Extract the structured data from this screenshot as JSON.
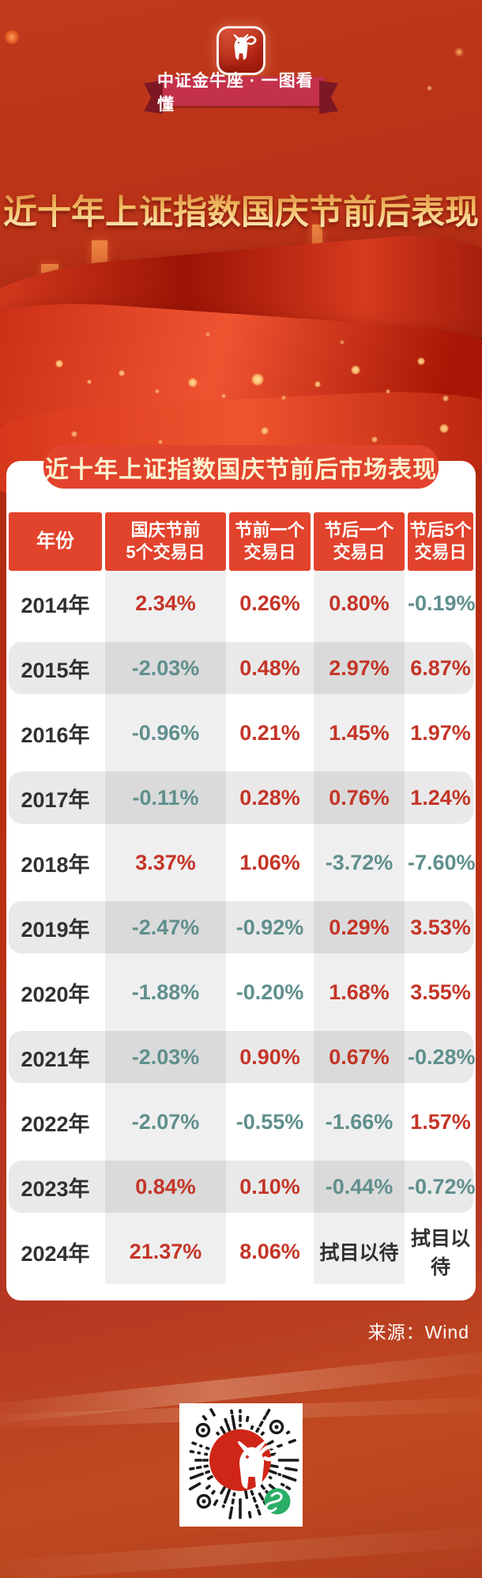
{
  "brand": {
    "app_icon": "bull-icon",
    "banner_label": "中证金牛座 · 一图看懂"
  },
  "page_title": "近十年上证指数国庆节前后表现",
  "card": {
    "header_lines": [
      [
        "年份"
      ],
      [
        "国庆节前",
        "5个交易日"
      ],
      [
        "节前一个",
        "交易日"
      ],
      [
        "节后一个",
        "交易日"
      ],
      [
        "节后5个",
        "交易日"
      ]
    ]
  },
  "chart_data": {
    "type": "table",
    "title": "近十年上证指数国庆节前后市场表现",
    "columns": [
      "年份",
      "国庆节前5个交易日",
      "节前一个交易日",
      "节后一个交易日",
      "节后5个交易日"
    ],
    "rows": [
      [
        "2014年",
        "2.34%",
        "0.26%",
        "0.80%",
        "-0.19%"
      ],
      [
        "2015年",
        "-2.03%",
        "0.48%",
        "2.97%",
        "6.87%"
      ],
      [
        "2016年",
        "-0.96%",
        "0.21%",
        "1.45%",
        "1.97%"
      ],
      [
        "2017年",
        "-0.11%",
        "0.28%",
        "0.76%",
        "1.24%"
      ],
      [
        "2018年",
        "3.37%",
        "1.06%",
        "-3.72%",
        "-7.60%"
      ],
      [
        "2019年",
        "-2.47%",
        "-0.92%",
        "0.29%",
        "3.53%"
      ],
      [
        "2020年",
        "-1.88%",
        "-0.20%",
        "1.68%",
        "3.55%"
      ],
      [
        "2021年",
        "-2.03%",
        "0.90%",
        "0.67%",
        "-0.28%"
      ],
      [
        "2022年",
        "-2.07%",
        "-0.55%",
        "-1.66%",
        "1.57%"
      ],
      [
        "2023年",
        "0.84%",
        "0.10%",
        "-0.44%",
        "-0.72%"
      ],
      [
        "2024年",
        "21.37%",
        "8.06%",
        "拭目以待",
        "拭目以待"
      ]
    ],
    "value_color_rule": "red = positive, teal = negative, dark = text",
    "source": "Wind"
  },
  "source_label": "来源：Wind",
  "qr": {
    "center_icon": "bull-icon",
    "corner_icon": "wechat-mini-program-icon",
    "style": "circular dotted mini-program code"
  },
  "colors": {
    "positive": "#c43527",
    "negative": "#5f8f8d",
    "header_red": "#e2432c",
    "pill_text": "#fcf3d0",
    "banner_red": "#c4314a",
    "title_gold_light": "#fdf0c4",
    "title_gold_dark": "#d97f33",
    "qr_green": "#2aae67"
  }
}
